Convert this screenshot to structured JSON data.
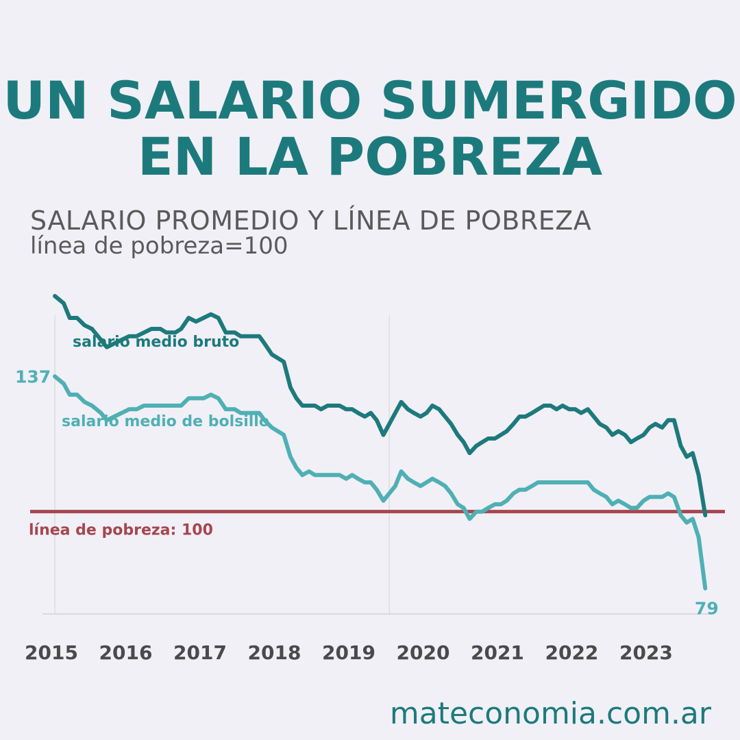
{
  "header": {
    "title_line1": "UN SALARIO SUMERGIDO",
    "title_line2": "EN LA POBREZA",
    "subtitle": "SALARIO PROMEDIO Y LÍNEA DE POBREZA",
    "subtitle2": "línea de pobreza=100"
  },
  "footer": {
    "source": "mateconomia.com.ar"
  },
  "chart_data": {
    "type": "line",
    "title": "SALARIO PROMEDIO Y LÍNEA DE POBREZA",
    "subtitle": "línea de pobreza=100",
    "xlabel": "",
    "ylabel": "",
    "xlim": [
      2015.0,
      2023.83
    ],
    "ylim": [
      72,
      162
    ],
    "x_ticks": [
      "2015",
      "2016",
      "2017",
      "2018",
      "2019",
      "2020",
      "2021",
      "2022",
      "2023"
    ],
    "grid": "vertical lines at 2015 and 2019.5",
    "legend": "inline labels",
    "reference_line": {
      "label": "línea de pobreza: 100",
      "value": 100,
      "color": "#a6464e"
    },
    "colors": {
      "bruto": "#1d7a7c",
      "bolsillo": "#4fb0b4",
      "title": "#1d7a7c",
      "tick": "#4a4a4a"
    },
    "series": [
      {
        "name": "salario medio bruto",
        "color": "#1d7a7c",
        "x": [
          2015.0,
          2015.12,
          2015.2,
          2015.3,
          2015.4,
          2015.5,
          2015.62,
          2015.7,
          2015.8,
          2015.9,
          2016.0,
          2016.1,
          2016.2,
          2016.3,
          2016.42,
          2016.5,
          2016.62,
          2016.7,
          2016.8,
          2016.9,
          2017.0,
          2017.1,
          2017.2,
          2017.3,
          2017.42,
          2017.5,
          2017.62,
          2017.75,
          2017.82,
          2017.92,
          2018.0,
          2018.08,
          2018.17,
          2018.25,
          2018.33,
          2018.42,
          2018.5,
          2018.58,
          2018.67,
          2018.75,
          2018.83,
          2018.92,
          2019.0,
          2019.08,
          2019.17,
          2019.25,
          2019.33,
          2019.42,
          2019.5,
          2019.58,
          2019.66,
          2019.75,
          2019.83,
          2019.92,
          2020.0,
          2020.08,
          2020.17,
          2020.25,
          2020.33,
          2020.42,
          2020.5,
          2020.58,
          2020.67,
          2020.75,
          2020.83,
          2020.92,
          2021.0,
          2021.08,
          2021.17,
          2021.25,
          2021.33,
          2021.42,
          2021.5,
          2021.58,
          2021.67,
          2021.75,
          2021.83,
          2021.92,
          2022.0,
          2022.08,
          2022.17,
          2022.25,
          2022.33,
          2022.42,
          2022.5,
          2022.58,
          2022.67,
          2022.75,
          2022.83,
          2022.92,
          2023.0,
          2023.08,
          2023.17,
          2023.25,
          2023.33,
          2023.42,
          2023.5,
          2023.58,
          2023.66,
          2023.75
        ],
        "values": [
          159,
          157,
          153,
          153,
          151,
          150,
          147,
          145,
          146,
          147,
          148,
          148,
          149,
          150,
          150,
          149,
          149,
          150,
          153,
          152,
          153,
          154,
          153,
          149,
          149,
          148,
          148,
          148,
          146,
          143,
          142,
          141,
          134,
          131,
          129,
          129,
          129,
          128,
          129,
          129,
          129,
          128,
          128,
          127,
          126,
          127,
          125,
          121,
          124,
          127,
          130,
          128,
          127,
          126,
          127,
          129,
          128,
          126,
          124,
          121,
          119,
          116,
          118,
          119,
          120,
          120,
          121,
          122,
          124,
          126,
          126,
          127,
          128,
          129,
          129,
          128,
          129,
          128,
          128,
          127,
          128,
          126,
          124,
          123,
          121,
          122,
          121,
          119,
          120,
          121,
          123,
          124,
          123,
          125,
          125,
          118,
          115,
          116,
          110,
          99
        ]
      },
      {
        "name": "salario medio de bolsillo",
        "color": "#4fb0b4",
        "x": [
          2015.0,
          2015.12,
          2015.2,
          2015.3,
          2015.4,
          2015.5,
          2015.62,
          2015.7,
          2015.8,
          2015.9,
          2016.0,
          2016.1,
          2016.2,
          2016.3,
          2016.42,
          2016.5,
          2016.62,
          2016.7,
          2016.8,
          2016.9,
          2017.0,
          2017.1,
          2017.2,
          2017.3,
          2017.42,
          2017.5,
          2017.62,
          2017.75,
          2017.82,
          2017.92,
          2018.0,
          2018.08,
          2018.17,
          2018.25,
          2018.33,
          2018.42,
          2018.5,
          2018.58,
          2018.67,
          2018.75,
          2018.83,
          2018.92,
          2019.0,
          2019.08,
          2019.17,
          2019.25,
          2019.33,
          2019.42,
          2019.5,
          2019.58,
          2019.66,
          2019.75,
          2019.83,
          2019.92,
          2020.0,
          2020.08,
          2020.17,
          2020.25,
          2020.33,
          2020.42,
          2020.5,
          2020.58,
          2020.67,
          2020.75,
          2020.83,
          2020.92,
          2021.0,
          2021.08,
          2021.17,
          2021.25,
          2021.33,
          2021.42,
          2021.5,
          2021.58,
          2021.67,
          2021.75,
          2021.83,
          2021.92,
          2022.0,
          2022.08,
          2022.17,
          2022.25,
          2022.33,
          2022.42,
          2022.5,
          2022.58,
          2022.67,
          2022.75,
          2022.83,
          2022.92,
          2023.0,
          2023.08,
          2023.17,
          2023.25,
          2023.33,
          2023.42,
          2023.5,
          2023.58,
          2023.66,
          2023.75
        ],
        "values": [
          137,
          135,
          132,
          132,
          130,
          129,
          127,
          125,
          126,
          127,
          128,
          128,
          129,
          129,
          129,
          129,
          129,
          129,
          131,
          131,
          131,
          132,
          131,
          128,
          128,
          127,
          127,
          127,
          125,
          123,
          122,
          121,
          115,
          112,
          110,
          111,
          110,
          110,
          110,
          110,
          110,
          109,
          110,
          109,
          108,
          108,
          106,
          103,
          105,
          107,
          111,
          109,
          108,
          107,
          108,
          109,
          108,
          107,
          105,
          102,
          101,
          98,
          100,
          100,
          101,
          102,
          102,
          103,
          105,
          106,
          106,
          107,
          108,
          108,
          108,
          108,
          108,
          108,
          108,
          108,
          108,
          106,
          105,
          104,
          102,
          103,
          102,
          101,
          101,
          103,
          104,
          104,
          104,
          105,
          104,
          99,
          97,
          98,
          93,
          79
        ]
      }
    ],
    "annotations": [
      {
        "text": "salario medio bruto",
        "series": "salario medio bruto"
      },
      {
        "text": "salario medio de bolsillo",
        "series": "salario medio de bolsillo"
      },
      {
        "text": "137",
        "x": 2015.0,
        "y": 137,
        "series": "salario medio de bolsillo"
      },
      {
        "text": "79",
        "x": 2023.75,
        "y": 79,
        "series": "salario medio de bolsillo"
      },
      {
        "text": "línea de pobreza: 100",
        "y": 100
      }
    ]
  }
}
